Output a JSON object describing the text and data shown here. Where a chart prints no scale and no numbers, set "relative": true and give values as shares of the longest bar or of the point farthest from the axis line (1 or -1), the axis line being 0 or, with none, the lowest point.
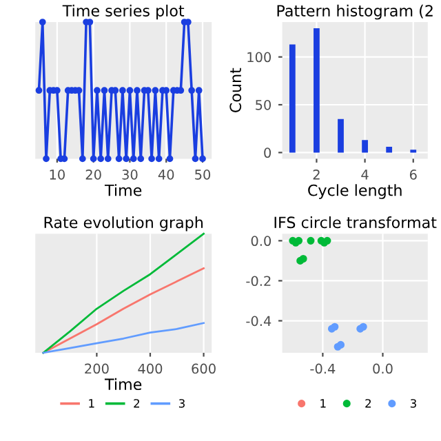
{
  "chart_data": [
    {
      "type": "line",
      "title": "Time series plot",
      "xlabel": "Time",
      "relative": true,
      "marker": "circle",
      "grid": true,
      "tick_labels": "x",
      "xlim": [
        4,
        52.5
      ],
      "xticks": [
        10,
        20,
        30,
        40,
        50
      ],
      "x": [
        5,
        6,
        7,
        8,
        9,
        10,
        11,
        12,
        13,
        14,
        15,
        16,
        17,
        18,
        19,
        20,
        21,
        22,
        23,
        24,
        25,
        26,
        27,
        28,
        29,
        30,
        31,
        32,
        33,
        34,
        35,
        36,
        37,
        38,
        39,
        40,
        41,
        42,
        43,
        44,
        45,
        46,
        47,
        48,
        49,
        50
      ],
      "series": [
        {
          "color": "#1a3ee0",
          "values": [
            0.5,
            1,
            0,
            0.5,
            0.5,
            0.5,
            0,
            0,
            0.5,
            0.5,
            0.5,
            0.5,
            0,
            1,
            1,
            0,
            0.5,
            0,
            0.5,
            0,
            0.5,
            0.5,
            0,
            0.5,
            0,
            0.5,
            0,
            0.5,
            0,
            0.5,
            0.5,
            0,
            0.5,
            0,
            0.5,
            0.5,
            0,
            0.5,
            0.5,
            0.5,
            1,
            1,
            0.5,
            0,
            0.5,
            0
          ]
        }
      ]
    },
    {
      "type": "bar",
      "title": "Pattern histogram (2",
      "xlabel": "Cycle length",
      "ylabel": "Count",
      "grid": true,
      "x": [
        1,
        2,
        3,
        4,
        5,
        6
      ],
      "xlim": [
        0.58,
        6.6
      ],
      "xticks": [
        2,
        4,
        6
      ],
      "ylim": [
        -6.5,
        136.5
      ],
      "yticks": [
        0,
        50,
        100
      ],
      "series": [
        {
          "color": "#1a3ee0",
          "values": [
            113,
            130,
            35,
            13,
            6,
            3
          ]
        }
      ]
    },
    {
      "type": "line",
      "title": "Rate evolution graph",
      "xlabel": "Time",
      "relative": true,
      "grid": true,
      "tick_labels": "x",
      "legend": "bottom",
      "xlim": [
        -30,
        630
      ],
      "xticks": [
        200,
        400,
        600
      ],
      "x": [
        0,
        100,
        200,
        300,
        400,
        500,
        600
      ],
      "series": [
        {
          "name": "1",
          "color": "#f8766d",
          "values": [
            0,
            0.12,
            0.24,
            0.37,
            0.49,
            0.6,
            0.71
          ]
        },
        {
          "name": "2",
          "color": "#00ba38",
          "values": [
            0,
            0.18,
            0.37,
            0.52,
            0.66,
            0.83,
            1
          ]
        },
        {
          "name": "3",
          "color": "#619cff",
          "values": [
            0,
            0.04,
            0.08,
            0.12,
            0.17,
            0.2,
            0.25
          ]
        }
      ]
    },
    {
      "type": "scatter",
      "title": "IFS circle transformat",
      "grid": true,
      "legend": "bottom",
      "xlim": [
        -0.67,
        0.3
      ],
      "xticks": [
        -0.4,
        {
          "value": 0,
          "label": "0.0"
        }
      ],
      "ylim": [
        -0.56,
        0.035
      ],
      "yticks": [
        {
          "value": 0,
          "label": "0.0"
        },
        -0.2,
        -0.4
      ],
      "series": [
        {
          "name": "1",
          "color": "#f8766d"
        },
        {
          "name": "2",
          "color": "#00ba38",
          "x": [
            -0.6,
            -0.58,
            -0.56,
            -0.48,
            -0.41,
            -0.39,
            -0.37,
            -0.55,
            -0.53
          ],
          "values": [
            0,
            -0.01,
            0,
            0,
            0,
            -0.01,
            0,
            -0.1,
            -0.09
          ]
        },
        {
          "name": "3",
          "color": "#619cff",
          "x": [
            -0.34,
            -0.32,
            -0.3,
            -0.28,
            -0.15,
            -0.13
          ],
          "values": [
            -0.44,
            -0.43,
            -0.53,
            -0.52,
            -0.44,
            -0.43
          ]
        }
      ]
    }
  ]
}
